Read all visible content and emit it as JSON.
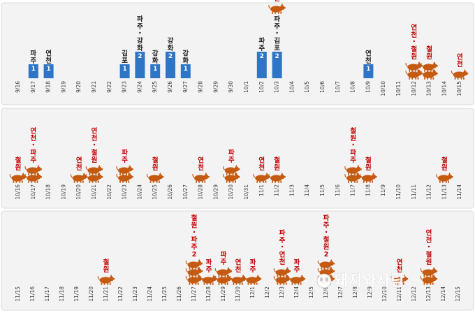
{
  "chart_data": {
    "type": "bar",
    "colors": {
      "bar": "#2e75c6",
      "pig": "#c55a11",
      "label_red": "#c00000",
      "label_dark": "#1f1f1f"
    },
    "panels": [
      {
        "dates": [
          "9/16",
          "9/17",
          "9/18",
          "9/19",
          "9/20",
          "9/21",
          "9/22",
          "9/23",
          "9/24",
          "9/25",
          "9/26",
          "9/27",
          "9/28",
          "9/29",
          "9/30",
          "10/1",
          "10/2",
          "10/3",
          "10/4",
          "10/5",
          "10/6",
          "10/7",
          "10/8",
          "10/9",
          "10/10",
          "10/11",
          "10/12",
          "10/13",
          "10/14",
          "10/15"
        ],
        "events": [
          {
            "date": "9/17",
            "kind": "bar",
            "count": 1,
            "label": "파주"
          },
          {
            "date": "9/18",
            "kind": "bar",
            "count": 1,
            "label": "연천"
          },
          {
            "date": "9/23",
            "kind": "bar",
            "count": 1,
            "label": "김포"
          },
          {
            "date": "9/24",
            "kind": "bar",
            "count": 2,
            "label": "파주·강화"
          },
          {
            "date": "9/25",
            "kind": "bar",
            "count": 1,
            "label": "강화"
          },
          {
            "date": "9/26",
            "kind": "bar",
            "count": 2,
            "label": "강화"
          },
          {
            "date": "9/27",
            "kind": "bar",
            "count": 1,
            "label": "강화"
          },
          {
            "date": "10/2",
            "kind": "bar",
            "count": 2,
            "label": "파주"
          },
          {
            "date": "10/3",
            "kind": "bar",
            "count": 2,
            "label": "파주·김포"
          },
          {
            "date": "10/9",
            "kind": "bar",
            "count": 1,
            "label": "연천"
          },
          {
            "date": "10/3",
            "kind": "pig",
            "count": 1,
            "label": "연천"
          },
          {
            "date": "10/12",
            "kind": "pig",
            "count": 2,
            "label": "연천·철원"
          },
          {
            "date": "10/13",
            "kind": "pig",
            "count": 2,
            "label": "철원"
          },
          {
            "date": "10/15",
            "kind": "pig",
            "count": 1,
            "label": "연천"
          }
        ]
      },
      {
        "dates": [
          "10/16",
          "10/17",
          "10/18",
          "10/19",
          "10/20",
          "10/21",
          "10/22",
          "10/23",
          "10/24",
          "10/25",
          "10/26",
          "10/27",
          "10/28",
          "10/29",
          "10/30",
          "10/31",
          "11/1",
          "11/2",
          "11/3",
          "11/4",
          "11/5",
          "11/6",
          "11/7",
          "11/8",
          "11/9",
          "11/10",
          "11/11",
          "11/12",
          "11/13",
          "11/14"
        ],
        "events": [
          {
            "date": "10/16",
            "kind": "pig",
            "count": 1,
            "label": "철원"
          },
          {
            "date": "10/17",
            "kind": "pig",
            "count": 2,
            "label": "연천·파주"
          },
          {
            "date": "10/20",
            "kind": "pig",
            "count": 1,
            "label": "연천"
          },
          {
            "date": "10/21",
            "kind": "pig",
            "count": 2,
            "label": "연천·철원"
          },
          {
            "date": "10/23",
            "kind": "pig",
            "count": 2,
            "label": "파주"
          },
          {
            "date": "10/25",
            "kind": "pig",
            "count": 1,
            "label": "철원"
          },
          {
            "date": "10/28",
            "kind": "pig",
            "count": 1,
            "label": "연천"
          },
          {
            "date": "10/30",
            "kind": "pig",
            "count": 2,
            "label": "파주"
          },
          {
            "date": "11/1",
            "kind": "pig",
            "count": 1,
            "label": "연천"
          },
          {
            "date": "11/2",
            "kind": "pig",
            "count": 1,
            "label": "철원"
          },
          {
            "date": "11/7",
            "kind": "pig",
            "count": 2,
            "label": "철원·파주"
          },
          {
            "date": "11/8",
            "kind": "pig",
            "count": 1,
            "label": "철원"
          },
          {
            "date": "11/13",
            "kind": "pig",
            "count": 1,
            "label": "철원"
          }
        ]
      },
      {
        "dates": [
          "11/15",
          "11/16",
          "11/17",
          "11/18",
          "11/19",
          "11/20",
          "11/21",
          "11/22",
          "11/23",
          "11/24",
          "11/25",
          "11/26",
          "11/27",
          "11/28",
          "11/29",
          "11/30",
          "12/1",
          "12/2",
          "12/3",
          "12/4",
          "12/5",
          "12/6",
          "12/7",
          "12/8",
          "12/9",
          "12/10",
          "12/11",
          "12/12",
          "12/13",
          "12/14",
          "12/15"
        ],
        "events": [
          {
            "date": "11/21",
            "kind": "pig",
            "count": 1,
            "label": "철원"
          },
          {
            "date": "11/27",
            "kind": "pig",
            "count": 3,
            "label": "철원·파주2"
          },
          {
            "date": "11/28",
            "kind": "pig",
            "count": 1,
            "label": "파주"
          },
          {
            "date": "11/29",
            "kind": "pig",
            "count": 2,
            "label": "파주"
          },
          {
            "date": "11/30",
            "kind": "pig",
            "count": 1,
            "label": "연천"
          },
          {
            "date": "12/1",
            "kind": "pig",
            "count": 1,
            "label": "파주"
          },
          {
            "date": "12/3",
            "kind": "pig",
            "count": 2,
            "label": "파주·연천"
          },
          {
            "date": "12/4",
            "kind": "pig",
            "count": 1,
            "label": "파주"
          },
          {
            "date": "12/6",
            "kind": "pig",
            "count": 3,
            "label": "파주·철원2"
          },
          {
            "date": "12/11",
            "kind": "pig",
            "count": 1,
            "label": "연천"
          },
          {
            "date": "12/13",
            "kind": "pig",
            "count": 2,
            "label": "연천·철원"
          }
        ]
      }
    ]
  },
  "watermark": {
    "title": "돼지와사람",
    "subtitle": "PIGPEOPLE"
  }
}
